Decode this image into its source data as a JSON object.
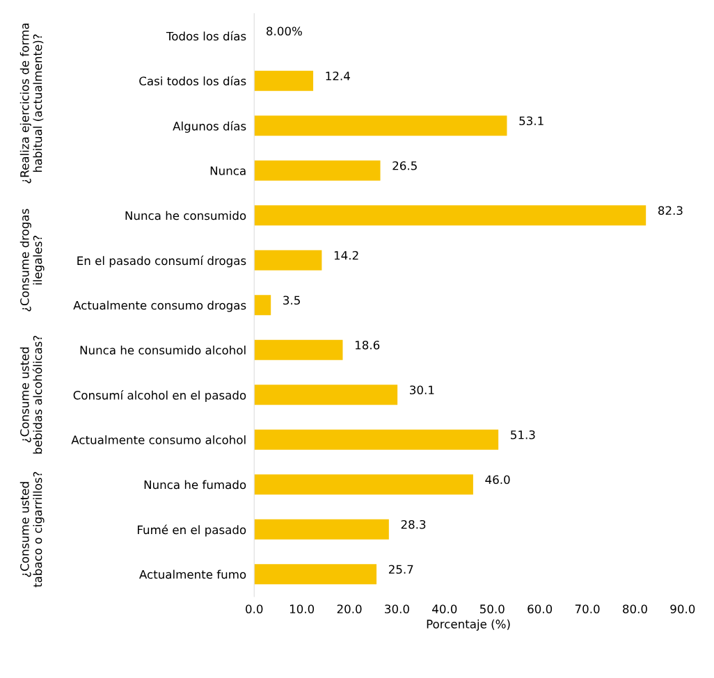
{
  "chart_data": {
    "type": "bar",
    "orientation": "horizontal",
    "xlabel": "Porcentaje (%)",
    "categories": [
      "Todos los días",
      "Casi todos los días",
      "Algunos días",
      "Nunca",
      "Nunca he consumido",
      "En el pasado consumí drogas",
      "Actualmente consumo drogas",
      "Nunca he consumido alcohol",
      "Consumí alcohol en el pasado",
      "Actualmente consumo alcohol",
      "Nunca he fumado",
      "Fumé en el pasado",
      "Actualmente fumo"
    ],
    "values": [
      null,
      12.4,
      53.1,
      26.5,
      82.3,
      14.2,
      3.5,
      18.6,
      30.1,
      51.3,
      46.0,
      28.3,
      25.7
    ],
    "value_labels": [
      "8.00%",
      "12.4",
      "53.1",
      "26.5",
      "82.3",
      "14.2",
      "3.5",
      "18.6",
      "30.1",
      "51.3",
      "46.0",
      "28.3",
      "25.7"
    ],
    "color": "#f8c300",
    "xlim": [
      0,
      90
    ],
    "xticks": [
      {
        "value": 0,
        "label": "0.0"
      },
      {
        "value": 10,
        "label": "10.0"
      },
      {
        "value": 20,
        "label": "20.0"
      },
      {
        "value": 30,
        "label": "30.0"
      },
      {
        "value": 40,
        "label": "40.0"
      },
      {
        "value": 50,
        "label": "50.0"
      },
      {
        "value": 60,
        "label": "60.0"
      },
      {
        "value": 70,
        "label": "70.0"
      },
      {
        "value": 80,
        "label": "80.0"
      },
      {
        "value": 90,
        "label": "90.0"
      }
    ],
    "annotations": [
      "¿Realiza ejercicios de forma habitual (actualmente)?",
      "¿Consume drogas ilegales?",
      "¿Consume usted bebidas alcohólicas?",
      "¿Consume usted tabaco o cigarrillos?"
    ],
    "grid": false,
    "legend": false
  }
}
